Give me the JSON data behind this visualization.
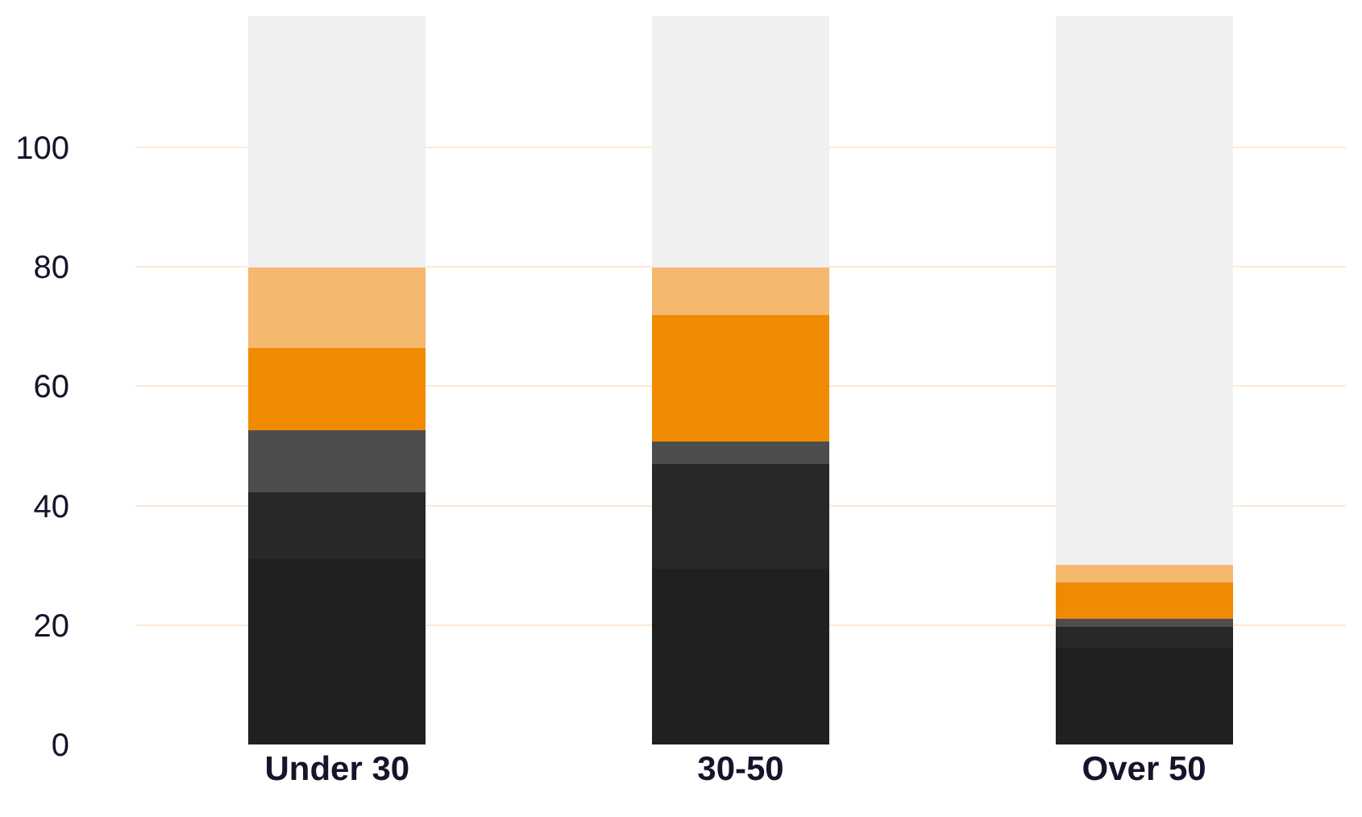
{
  "chart_data": {
    "type": "bar",
    "stacked": true,
    "categories": [
      "Under 30",
      "30-50",
      "Over 50"
    ],
    "series": [
      {
        "color": "#202020",
        "values": [
          31.1,
          29.4,
          16.2
        ]
      },
      {
        "color": "#282828",
        "values": [
          11.2,
          17.6,
          3.5
        ]
      },
      {
        "color": "#4d4d4d",
        "values": [
          10.4,
          3.7,
          1.4
        ]
      },
      {
        "color": "#f08a00",
        "values": [
          13.7,
          21.2,
          6.0
        ]
      },
      {
        "color": "#f5b86e",
        "values": [
          13.5,
          8.0,
          3.0
        ]
      },
      {
        "color": "#f0f0f0",
        "values": [
          42.1,
          42.1,
          91.9
        ]
      }
    ],
    "ylim": [
      0,
      122
    ],
    "yticks": [
      0,
      20,
      40,
      60,
      80,
      100
    ],
    "grid": "y"
  }
}
